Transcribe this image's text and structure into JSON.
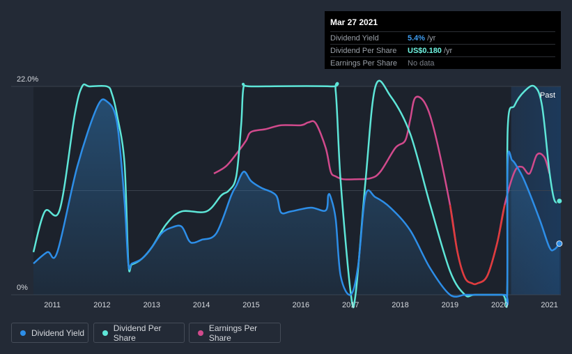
{
  "tooltip": {
    "date": "Mar 27 2021",
    "rows": [
      {
        "label": "Dividend Yield",
        "value": "5.4%",
        "unit": "/yr",
        "color": "#3e9cf0"
      },
      {
        "label": "Dividend Per Share",
        "value": "US$0.180",
        "unit": "/yr",
        "color": "#6ff3e0"
      },
      {
        "label": "Earnings Per Share",
        "value": "No data",
        "unit": "",
        "color": "#7b8089"
      }
    ]
  },
  "past_label": "Past",
  "legend": [
    {
      "label": "Dividend Yield",
      "color": "#2d8ee8"
    },
    {
      "label": "Dividend Per Share",
      "color": "#5ee6d8"
    },
    {
      "label": "Earnings Per Share",
      "color": "#d14a8c"
    }
  ],
  "chart_data": {
    "type": "line",
    "title": "",
    "xlabel": "",
    "ylabel": "",
    "ylim": [
      0,
      22
    ],
    "y_tick_labels": [
      "0%",
      "22.0%"
    ],
    "x_tick_labels": [
      "2011",
      "2012",
      "2013",
      "2014",
      "2015",
      "2016",
      "2017",
      "2018",
      "2019",
      "2020",
      "2021"
    ],
    "xlim": [
      2010.62,
      2021.23
    ],
    "past_region_start": 2020.23,
    "series": [
      {
        "name": "Dividend Yield",
        "color": "#2d8ee8",
        "x": [
          2010.62,
          2010.9,
          2011.1,
          2011.5,
          2011.9,
          2012.1,
          2012.3,
          2012.45,
          2012.53,
          2012.6,
          2012.8,
          2013.0,
          2013.2,
          2013.4,
          2013.6,
          2013.75,
          2013.85,
          2014.0,
          2014.3,
          2014.6,
          2014.7,
          2014.85,
          2015.0,
          2015.2,
          2015.5,
          2015.6,
          2015.8,
          2016.2,
          2016.5,
          2016.55,
          2016.6,
          2016.7,
          2016.8,
          2017.0,
          2017.15,
          2017.3,
          2017.5,
          2017.8,
          2018.2,
          2018.6,
          2019.0,
          2019.3,
          2019.5,
          2020.1,
          2020.15,
          2020.16,
          2020.25,
          2020.35,
          2020.5,
          2020.8,
          2021.0,
          2021.1,
          2021.2
        ],
        "values": [
          3.3,
          4.5,
          4.5,
          13.5,
          19.8,
          20.4,
          18.2,
          10.0,
          3.2,
          3.3,
          3.8,
          5.0,
          6.5,
          7.1,
          7.2,
          5.7,
          5.5,
          5.8,
          6.5,
          10.5,
          11.5,
          13.0,
          12.0,
          11.3,
          10.5,
          8.7,
          8.8,
          9.2,
          8.9,
          10.5,
          10.3,
          8.0,
          2.0,
          0.0,
          3.0,
          10.5,
          10.3,
          9.2,
          6.8,
          2.8,
          0.0,
          0.0,
          0.0,
          0.0,
          0.0,
          14.0,
          14.2,
          13.5,
          12.0,
          8.0,
          5.0,
          4.8,
          5.4
        ]
      },
      {
        "name": "Dividend Per Share",
        "color": "#5ee6d8",
        "x": [
          2010.62,
          2010.85,
          2011.15,
          2011.45,
          2011.6,
          2011.75,
          2012.1,
          2012.2,
          2012.3,
          2012.45,
          2012.53,
          2012.6,
          2012.8,
          2013.0,
          2013.3,
          2013.6,
          2014.1,
          2014.4,
          2014.55,
          2014.7,
          2014.8,
          2014.85,
          2015.0,
          2016.6,
          2016.7,
          2016.8,
          2017.0,
          2017.1,
          2017.3,
          2017.5,
          2017.8,
          2018.2,
          2018.6,
          2019.0,
          2019.3,
          2019.5,
          2020.05,
          2020.15,
          2020.16,
          2020.3,
          2020.5,
          2020.7,
          2020.85,
          2021.0,
          2021.1,
          2021.2
        ],
        "values": [
          4.5,
          8.8,
          9.0,
          19.0,
          22.0,
          22.0,
          22.0,
          21.2,
          19.0,
          14.0,
          3.3,
          3.2,
          3.8,
          5.0,
          7.5,
          8.8,
          8.8,
          10.5,
          11.0,
          12.5,
          18.0,
          22.0,
          22.0,
          22.0,
          21.5,
          12.0,
          0.3,
          0.0,
          12.0,
          22.0,
          21.0,
          17.0,
          9.5,
          2.5,
          0.0,
          0.0,
          0.0,
          0.0,
          17.5,
          20.0,
          21.5,
          22.0,
          20.0,
          13.0,
          10.0,
          9.9
        ]
      },
      {
        "name": "Earnings Per Share",
        "color": "#d14a8c",
        "negative_color": "#e03c3c",
        "x": [
          2014.25,
          2014.5,
          2014.75,
          2014.9,
          2015.0,
          2015.3,
          2015.6,
          2016.0,
          2016.15,
          2016.3,
          2016.5,
          2016.6,
          2016.7,
          2016.85,
          2017.1,
          2017.4,
          2017.6,
          2017.9,
          2018.1,
          2018.2,
          2018.3,
          2018.5,
          2018.7,
          2019.0,
          2019.15,
          2019.3,
          2019.45,
          2019.55,
          2019.75,
          2019.95,
          2020.1,
          2020.3,
          2020.45,
          2020.6,
          2020.75,
          2020.9,
          2021.0
        ],
        "values": [
          12.8,
          13.6,
          15.2,
          16.3,
          17.2,
          17.5,
          17.9,
          17.9,
          18.2,
          18.1,
          15.5,
          13.0,
          12.5,
          12.2,
          12.2,
          12.3,
          13.0,
          15.5,
          16.3,
          18.5,
          20.8,
          20.2,
          17.0,
          9.5,
          4.5,
          1.8,
          1.2,
          1.2,
          2.0,
          5.5,
          9.5,
          13.0,
          13.5,
          12.8,
          14.8,
          14.5,
          12.8
        ]
      }
    ]
  }
}
